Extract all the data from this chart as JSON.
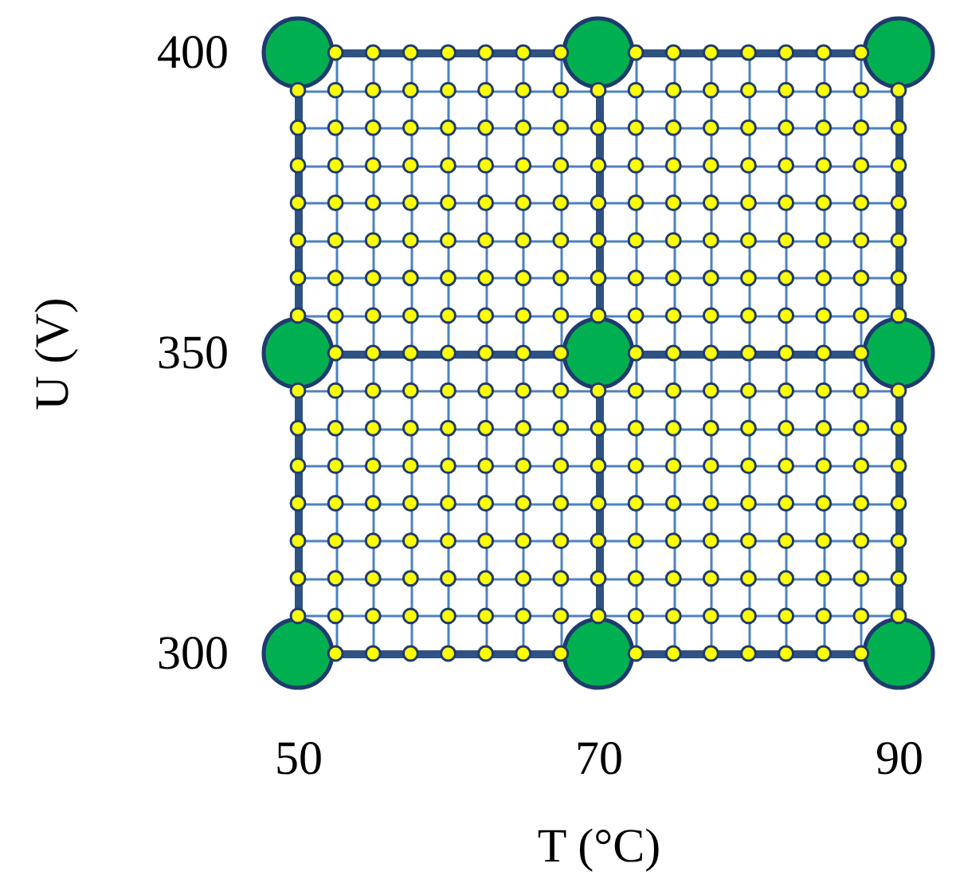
{
  "chart_data": {
    "type": "scatter",
    "xlabel": "T (°C)",
    "ylabel": "U (V)",
    "xlim": [
      50,
      90
    ],
    "ylim": [
      300,
      400
    ],
    "grid": true,
    "marker": "circle",
    "xticks": [
      50,
      {
        "value": 52.5,
        "label": null
      },
      {
        "value": 55,
        "label": null
      },
      {
        "value": 57.5,
        "label": null
      },
      {
        "value": 60,
        "label": null
      },
      {
        "value": 62.5,
        "label": null
      },
      {
        "value": 65,
        "label": null
      },
      {
        "value": 67.5,
        "label": null
      },
      70,
      {
        "value": 72.5,
        "label": null
      },
      {
        "value": 75,
        "label": null
      },
      {
        "value": 77.5,
        "label": null
      },
      {
        "value": 80,
        "label": null
      },
      {
        "value": 82.5,
        "label": null
      },
      {
        "value": 85,
        "label": null
      },
      {
        "value": 87.5,
        "label": null
      },
      90
    ],
    "yticks": [
      300,
      {
        "value": 306.25,
        "label": null
      },
      {
        "value": 312.5,
        "label": null
      },
      {
        "value": 318.75,
        "label": null
      },
      {
        "value": 325,
        "label": null
      },
      {
        "value": 331.25,
        "label": null
      },
      {
        "value": 337.5,
        "label": null
      },
      {
        "value": 343.75,
        "label": null
      },
      350,
      {
        "value": 356.25,
        "label": null
      },
      {
        "value": 362.5,
        "label": null
      },
      {
        "value": 368.75,
        "label": null
      },
      {
        "value": 375,
        "label": null
      },
      {
        "value": 381.25,
        "label": null
      },
      {
        "value": 387.5,
        "label": null
      },
      {
        "value": 393.75,
        "label": null
      },
      400
    ],
    "series": [
      {
        "color": "#00b050",
        "x": [
          50,
          70,
          90,
          50,
          70,
          90,
          50,
          70,
          90
        ],
        "values": [
          300,
          300,
          300,
          350,
          350,
          350,
          400,
          400,
          400
        ]
      },
      {
        "color": "#ffff00",
        "x": [
          52.5,
          55,
          57.5,
          60,
          62.5,
          65,
          67.5,
          72.5,
          75,
          77.5,
          80,
          82.5,
          85,
          87.5,
          50,
          52.5,
          55,
          57.5,
          60,
          62.5,
          65,
          67.5,
          70,
          72.5,
          75,
          77.5,
          80,
          82.5,
          85,
          87.5,
          90,
          50,
          52.5,
          55,
          57.5,
          60,
          62.5,
          65,
          67.5,
          70,
          72.5,
          75,
          77.5,
          80,
          82.5,
          85,
          87.5,
          90,
          50,
          52.5,
          55,
          57.5,
          60,
          62.5,
          65,
          67.5,
          70,
          72.5,
          75,
          77.5,
          80,
          82.5,
          85,
          87.5,
          90,
          50,
          52.5,
          55,
          57.5,
          60,
          62.5,
          65,
          67.5,
          70,
          72.5,
          75,
          77.5,
          80,
          82.5,
          85,
          87.5,
          90,
          50,
          52.5,
          55,
          57.5,
          60,
          62.5,
          65,
          67.5,
          70,
          72.5,
          75,
          77.5,
          80,
          82.5,
          85,
          87.5,
          90,
          50,
          52.5,
          55,
          57.5,
          60,
          62.5,
          65,
          67.5,
          70,
          72.5,
          75,
          77.5,
          80,
          82.5,
          85,
          87.5,
          90,
          50,
          52.5,
          55,
          57.5,
          60,
          62.5,
          65,
          67.5,
          70,
          72.5,
          75,
          77.5,
          80,
          82.5,
          85,
          87.5,
          90,
          52.5,
          55,
          57.5,
          60,
          62.5,
          65,
          67.5,
          72.5,
          75,
          77.5,
          80,
          82.5,
          85,
          87.5,
          50,
          52.5,
          55,
          57.5,
          60,
          62.5,
          65,
          67.5,
          70,
          72.5,
          75,
          77.5,
          80,
          82.5,
          85,
          87.5,
          90,
          50,
          52.5,
          55,
          57.5,
          60,
          62.5,
          65,
          67.5,
          70,
          72.5,
          75,
          77.5,
          80,
          82.5,
          85,
          87.5,
          90,
          50,
          52.5,
          55,
          57.5,
          60,
          62.5,
          65,
          67.5,
          70,
          72.5,
          75,
          77.5,
          80,
          82.5,
          85,
          87.5,
          90,
          50,
          52.5,
          55,
          57.5,
          60,
          62.5,
          65,
          67.5,
          70,
          72.5,
          75,
          77.5,
          80,
          82.5,
          85,
          87.5,
          90,
          50,
          52.5,
          55,
          57.5,
          60,
          62.5,
          65,
          67.5,
          70,
          72.5,
          75,
          77.5,
          80,
          82.5,
          85,
          87.5,
          90,
          50,
          52.5,
          55,
          57.5,
          60,
          62.5,
          65,
          67.5,
          70,
          72.5,
          75,
          77.5,
          80,
          82.5,
          85,
          87.5,
          90,
          50,
          52.5,
          55,
          57.5,
          60,
          62.5,
          65,
          67.5,
          70,
          72.5,
          75,
          77.5,
          80,
          82.5,
          85,
          87.5,
          90,
          52.5,
          55,
          57.5,
          60,
          62.5,
          65,
          67.5,
          72.5,
          75,
          77.5,
          80,
          82.5,
          85,
          87.5
        ],
        "values": [
          300,
          300,
          300,
          300,
          300,
          300,
          300,
          300,
          300,
          300,
          300,
          300,
          300,
          300,
          306.25,
          306.25,
          306.25,
          306.25,
          306.25,
          306.25,
          306.25,
          306.25,
          306.25,
          306.25,
          306.25,
          306.25,
          306.25,
          306.25,
          306.25,
          306.25,
          306.25,
          312.5,
          312.5,
          312.5,
          312.5,
          312.5,
          312.5,
          312.5,
          312.5,
          312.5,
          312.5,
          312.5,
          312.5,
          312.5,
          312.5,
          312.5,
          312.5,
          312.5,
          318.75,
          318.75,
          318.75,
          318.75,
          318.75,
          318.75,
          318.75,
          318.75,
          318.75,
          318.75,
          318.75,
          318.75,
          318.75,
          318.75,
          318.75,
          318.75,
          318.75,
          325,
          325,
          325,
          325,
          325,
          325,
          325,
          325,
          325,
          325,
          325,
          325,
          325,
          325,
          325,
          325,
          325,
          331.25,
          331.25,
          331.25,
          331.25,
          331.25,
          331.25,
          331.25,
          331.25,
          331.25,
          331.25,
          331.25,
          331.25,
          331.25,
          331.25,
          331.25,
          331.25,
          331.25,
          337.5,
          337.5,
          337.5,
          337.5,
          337.5,
          337.5,
          337.5,
          337.5,
          337.5,
          337.5,
          337.5,
          337.5,
          337.5,
          337.5,
          337.5,
          337.5,
          337.5,
          343.75,
          343.75,
          343.75,
          343.75,
          343.75,
          343.75,
          343.75,
          343.75,
          343.75,
          343.75,
          343.75,
          343.75,
          343.75,
          343.75,
          343.75,
          343.75,
          343.75,
          350,
          350,
          350,
          350,
          350,
          350,
          350,
          350,
          350,
          350,
          350,
          350,
          350,
          350,
          356.25,
          356.25,
          356.25,
          356.25,
          356.25,
          356.25,
          356.25,
          356.25,
          356.25,
          356.25,
          356.25,
          356.25,
          356.25,
          356.25,
          356.25,
          356.25,
          356.25,
          362.5,
          362.5,
          362.5,
          362.5,
          362.5,
          362.5,
          362.5,
          362.5,
          362.5,
          362.5,
          362.5,
          362.5,
          362.5,
          362.5,
          362.5,
          362.5,
          362.5,
          368.75,
          368.75,
          368.75,
          368.75,
          368.75,
          368.75,
          368.75,
          368.75,
          368.75,
          368.75,
          368.75,
          368.75,
          368.75,
          368.75,
          368.75,
          368.75,
          368.75,
          375,
          375,
          375,
          375,
          375,
          375,
          375,
          375,
          375,
          375,
          375,
          375,
          375,
          375,
          375,
          375,
          375,
          381.25,
          381.25,
          381.25,
          381.25,
          381.25,
          381.25,
          381.25,
          381.25,
          381.25,
          381.25,
          381.25,
          381.25,
          381.25,
          381.25,
          381.25,
          381.25,
          381.25,
          387.5,
          387.5,
          387.5,
          387.5,
          387.5,
          387.5,
          387.5,
          387.5,
          387.5,
          387.5,
          387.5,
          387.5,
          387.5,
          387.5,
          387.5,
          387.5,
          387.5,
          393.75,
          393.75,
          393.75,
          393.75,
          393.75,
          393.75,
          393.75,
          393.75,
          393.75,
          393.75,
          393.75,
          393.75,
          393.75,
          393.75,
          393.75,
          393.75,
          393.75,
          400,
          400,
          400,
          400,
          400,
          400,
          400,
          400,
          400,
          400,
          400,
          400,
          400,
          400
        ]
      }
    ]
  }
}
